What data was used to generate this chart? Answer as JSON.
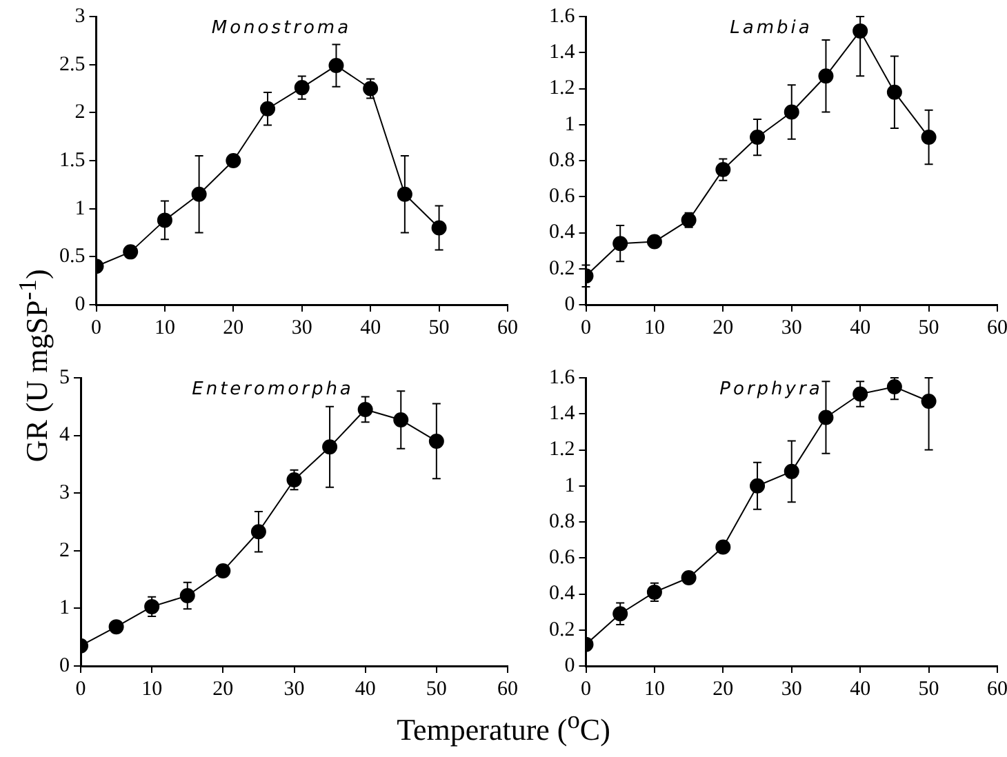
{
  "chart_data": [
    {
      "type": "line",
      "title": "Monostroma",
      "ylabel": "GR (U mgSP$^{-1}$)",
      "x": [
        0,
        5,
        10,
        15,
        20,
        25,
        30,
        35,
        40,
        45,
        50
      ],
      "series": [
        {
          "color": "#000000",
          "values": [
            0.4,
            0.55,
            0.88,
            1.15,
            1.5,
            2.04,
            2.26,
            2.49,
            2.25,
            1.15,
            0.8
          ],
          "errors": [
            null,
            null,
            0.2,
            0.4,
            null,
            0.17,
            0.12,
            0.22,
            0.1,
            0.4,
            0.23
          ]
        }
      ],
      "xlim": [
        0,
        60
      ],
      "xticks": [
        0,
        10,
        20,
        30,
        40,
        50,
        60
      ],
      "ylim": [
        0,
        3
      ],
      "yticks": [
        0,
        0.5,
        1,
        1.5,
        2,
        2.5,
        3
      ],
      "marker": "circle",
      "line_style": "solid",
      "grid": false,
      "legend": false
    },
    {
      "type": "line",
      "title": "Lambia",
      "x": [
        0,
        5,
        10,
        15,
        20,
        25,
        30,
        35,
        40,
        45,
        50
      ],
      "series": [
        {
          "color": "#000000",
          "values": [
            0.16,
            0.34,
            0.35,
            0.47,
            0.75,
            0.93,
            1.07,
            1.27,
            1.52,
            1.18,
            0.93
          ],
          "errors": [
            0.06,
            0.1,
            null,
            0.04,
            0.06,
            0.1,
            0.15,
            0.2,
            [
              1.27,
              1.6
            ],
            0.2,
            0.15
          ]
        }
      ],
      "xlim": [
        0,
        60
      ],
      "xticks": [
        0,
        10,
        20,
        30,
        40,
        50,
        60
      ],
      "ylim": [
        0,
        1.6
      ],
      "yticks": [
        0,
        0.2,
        0.4,
        0.6,
        0.8,
        1,
        1.2,
        1.4,
        1.6
      ],
      "marker": "circle",
      "line_style": "solid",
      "grid": false,
      "legend": false
    },
    {
      "type": "line",
      "title": "Enteromorpha",
      "xlabel": "Temperature ($^{o}$C)",
      "x": [
        0,
        5,
        10,
        15,
        20,
        25,
        30,
        35,
        40,
        45,
        50
      ],
      "series": [
        {
          "color": "#000000",
          "values": [
            0.35,
            0.68,
            1.03,
            1.22,
            1.65,
            2.33,
            3.23,
            3.8,
            4.45,
            4.27,
            3.9
          ],
          "errors": [
            null,
            null,
            0.17,
            0.23,
            null,
            0.35,
            0.17,
            0.7,
            0.22,
            0.5,
            0.65
          ]
        }
      ],
      "xlim": [
        0,
        60
      ],
      "xticks": [
        0,
        10,
        20,
        30,
        40,
        50,
        60
      ],
      "ylim": [
        0,
        5
      ],
      "yticks": [
        0,
        1,
        2,
        3,
        4,
        5
      ],
      "marker": "circle",
      "line_style": "solid",
      "grid": false,
      "legend": false
    },
    {
      "type": "line",
      "title": "Porphyra",
      "x": [
        0,
        5,
        10,
        15,
        20,
        25,
        30,
        35,
        40,
        45,
        50
      ],
      "series": [
        {
          "color": "#000000",
          "values": [
            0.12,
            0.29,
            0.41,
            0.49,
            0.66,
            1.0,
            1.08,
            1.38,
            1.51,
            1.55,
            1.47
          ],
          "errors": [
            null,
            0.06,
            0.05,
            null,
            null,
            0.13,
            0.17,
            0.2,
            0.07,
            [
              1.48,
              1.6
            ],
            [
              1.2,
              1.6
            ]
          ]
        }
      ],
      "xlim": [
        0,
        60
      ],
      "xticks": [
        0,
        10,
        20,
        30,
        40,
        50,
        60
      ],
      "ylim": [
        0,
        1.6
      ],
      "yticks": [
        0,
        0.2,
        0.4,
        0.6,
        0.8,
        1,
        1.2,
        1.4,
        1.6
      ],
      "marker": "circle",
      "line_style": "solid",
      "grid": false,
      "legend": false
    }
  ]
}
